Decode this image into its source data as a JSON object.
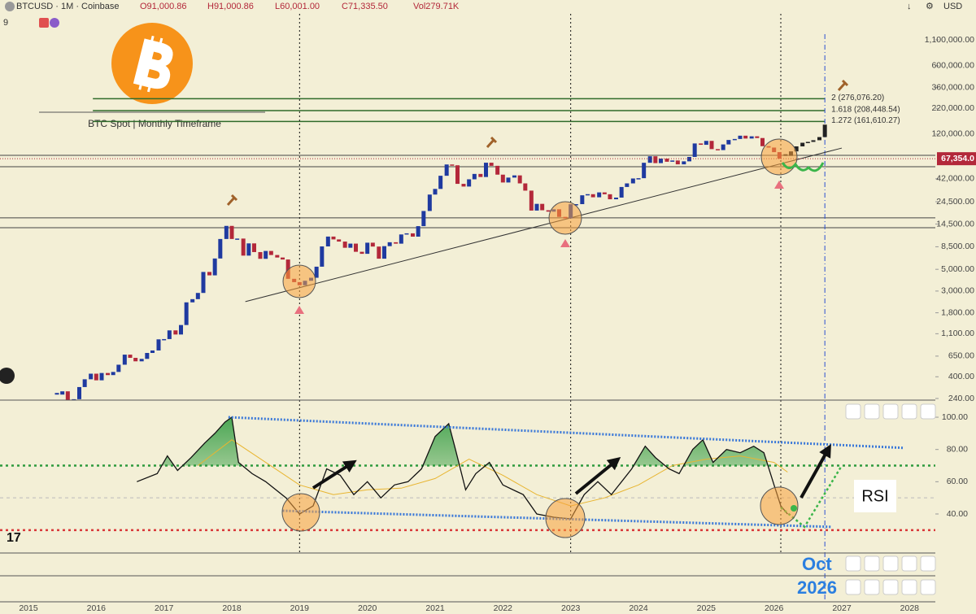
{
  "header": {
    "symbol": "BTCUSD · 1M · Coinbase",
    "ohlc": [
      "O91,000.86",
      "H91,000.86",
      "L60,001.00",
      "C71,335.50",
      "Vol279.71K"
    ],
    "badge": "9",
    "currency": "USD"
  },
  "annotations": {
    "caption": "BTC Spot | Monthly Timeframe",
    "rsi_label": "RSI",
    "target_month": "Oct",
    "target_year": "2026"
  },
  "chart_data": [
    {
      "type": "candlestick",
      "log_scale": true,
      "up_color": "#1f3aa0",
      "down_color": "#b3283a",
      "projection_color": "#222",
      "xlim": [
        2014.58,
        2028.38
      ],
      "xticks": [
        2015,
        2016,
        2017,
        2018,
        2019,
        2020,
        2021,
        2022,
        2023,
        2024,
        2025,
        2026,
        2027,
        2028
      ],
      "ylim": [
        231,
        2030000
      ],
      "yticks": [
        {
          "value": 240,
          "label": "240.00"
        },
        {
          "value": 400,
          "label": "400.00"
        },
        {
          "value": 650,
          "label": "650.00"
        },
        {
          "value": 1100,
          "label": "1,100.00"
        },
        {
          "value": 1800,
          "label": "1,800.00"
        },
        {
          "value": 3000,
          "label": "3,000.00"
        },
        {
          "value": 5000,
          "label": "5,000.00"
        },
        {
          "value": 8500,
          "label": "8,500.00"
        },
        {
          "value": 14500,
          "label": "14,500.00"
        },
        {
          "value": 24500,
          "label": "24,500.00"
        },
        {
          "value": 42000,
          "label": "42,000.00"
        },
        {
          "value": 120000,
          "label": "120,000.00"
        },
        {
          "value": 220000,
          "label": "220,000.00"
        },
        {
          "value": 360000,
          "label": "360,000.00"
        },
        {
          "value": 600000,
          "label": "600,000.00"
        },
        {
          "value": 1100000,
          "label": "1,100,000.00"
        }
      ],
      "last_price": {
        "value": 67354,
        "label": "67,354.0"
      },
      "x": [
        2015.42,
        2015.5,
        2015.58,
        2015.67,
        2015.75,
        2015.83,
        2015.92,
        2016,
        2016.08,
        2016.17,
        2016.25,
        2016.33,
        2016.42,
        2016.5,
        2016.58,
        2016.67,
        2016.75,
        2016.83,
        2016.92,
        2017,
        2017.08,
        2017.17,
        2017.25,
        2017.33,
        2017.42,
        2017.5,
        2017.58,
        2017.67,
        2017.75,
        2017.83,
        2017.92,
        2018,
        2018.08,
        2018.17,
        2018.25,
        2018.33,
        2018.42,
        2018.5,
        2018.58,
        2018.67,
        2018.75,
        2018.83,
        2018.92,
        2019,
        2019.08,
        2019.17,
        2019.25,
        2019.33,
        2019.42,
        2019.5,
        2019.58,
        2019.67,
        2019.75,
        2019.83,
        2019.92,
        2020,
        2020.08,
        2020.17,
        2020.25,
        2020.33,
        2020.42,
        2020.5,
        2020.58,
        2020.67,
        2020.75,
        2020.83,
        2020.92,
        2021,
        2021.08,
        2021.17,
        2021.25,
        2021.33,
        2021.42,
        2021.5,
        2021.58,
        2021.67,
        2021.75,
        2021.83,
        2021.92,
        2022,
        2022.08,
        2022.17,
        2022.25,
        2022.33,
        2022.42,
        2022.5,
        2022.58,
        2022.67,
        2022.75,
        2022.83,
        2022.92,
        2023,
        2023.08,
        2023.17,
        2023.25,
        2023.33,
        2023.42,
        2023.5,
        2023.58,
        2023.67,
        2023.75,
        2023.83,
        2023.92,
        2024,
        2024.08,
        2024.17,
        2024.25,
        2024.33,
        2024.42,
        2024.5,
        2024.58,
        2024.67,
        2024.75,
        2024.83,
        2024.92,
        2025,
        2025.08,
        2025.17,
        2025.25,
        2025.33,
        2025.42,
        2025.5,
        2025.58,
        2025.67,
        2025.75,
        2025.83,
        2025.92,
        2026,
        2026.08
      ],
      "values": [
        263,
        284,
        230,
        236,
        314,
        377,
        430,
        368,
        437,
        416,
        448,
        531,
        673,
        624,
        575,
        609,
        700,
        742,
        964,
        970,
        1190,
        1080,
        1350,
        2300,
        2480,
        2870,
        4700,
        4340,
        6450,
        10200,
        13880,
        10200,
        10300,
        6900,
        9200,
        7500,
        6400,
        7700,
        7000,
        6600,
        6300,
        4000,
        3700,
        3440,
        3820,
        4100,
        5320,
        8570,
        10800,
        10100,
        9600,
        8300,
        9150,
        7550,
        7200,
        9350,
        8540,
        6420,
        8620,
        9450,
        9140,
        11350,
        11650,
        10780,
        13800,
        19700,
        28990,
        33100,
        45100,
        58800,
        57700,
        37300,
        35000,
        41500,
        47100,
        43800,
        61300,
        57000,
        46300,
        38500,
        43200,
        45500,
        37700,
        31800,
        19900,
        23300,
        20050,
        19400,
        20500,
        17150,
        16550,
        23100,
        23150,
        28500,
        29250,
        27200,
        30500,
        29200,
        25950,
        27000,
        34650,
        37700,
        42300,
        42600,
        61200,
        71300,
        60700,
        67500,
        62700,
        64600,
        59000,
        63300,
        70200,
        96400,
        93400,
        102400,
        84400,
        82500,
        94200,
        104600,
        107100,
        115700,
        108200,
        114000,
        109500,
        90400,
        87500,
        78600,
        67354
      ],
      "projection_x": [
        2026.17,
        2026.25,
        2026.33,
        2026.42,
        2026.5,
        2026.58,
        2026.67,
        2026.75
      ],
      "projection_values": [
        72000,
        80000,
        90000,
        98000,
        100000,
        104000,
        112000,
        150000
      ],
      "levels": [
        {
          "value": 276076.2,
          "label": "2 (276,076.20)",
          "color": "#2f6b2a"
        },
        {
          "value": 208448.54,
          "label": "1.618 (208,448.54)",
          "color": "#2f6b2a"
        },
        {
          "value": 161610.27,
          "label": "1.272 (161,610.27)",
          "color": "#2f6b2a"
        }
      ],
      "zones": [
        72900,
        55800,
        16750,
        13300
      ],
      "trendline": {
        "x": [
          2018.2,
          2027.0
        ],
        "values": [
          2340,
          86500
        ]
      },
      "vlines": [
        2019.0,
        2023.0,
        2026.1
      ],
      "target_x": 2026.75
    },
    {
      "type": "line",
      "xlim": [
        2014.58,
        2028.38
      ],
      "ylim": [
        15.8,
        110.1
      ],
      "yticks": [
        {
          "value": 100,
          "label": "100.00"
        },
        {
          "value": 80,
          "label": "80.00"
        },
        {
          "value": 60,
          "label": "60.00"
        },
        {
          "value": 40,
          "label": "40.00"
        }
      ],
      "overbought": 70,
      "oversold": 30,
      "midline": 50,
      "color": "#111",
      "ma_color": "#e8b531",
      "fill_color": "#2e9a3e",
      "x": [
        2016.6,
        2016.9,
        2017.05,
        2017.2,
        2017.4,
        2017.6,
        2017.75,
        2017.9,
        2018.0,
        2018.1,
        2018.3,
        2018.5,
        2018.8,
        2019.0,
        2019.2,
        2019.4,
        2019.6,
        2019.8,
        2020.0,
        2020.2,
        2020.4,
        2020.6,
        2020.8,
        2021.0,
        2021.2,
        2021.3,
        2021.45,
        2021.6,
        2021.8,
        2022.0,
        2022.3,
        2022.5,
        2022.75,
        2023.0,
        2023.2,
        2023.4,
        2023.6,
        2023.9,
        2024.1,
        2024.25,
        2024.45,
        2024.6,
        2024.8,
        2024.95,
        2025.1,
        2025.3,
        2025.5,
        2025.7,
        2025.85,
        2026.0,
        2026.1,
        2026.2
      ],
      "values": [
        60,
        65,
        76,
        67,
        75,
        84,
        90,
        97,
        100,
        72,
        65,
        60,
        50,
        40,
        45,
        68,
        64,
        52,
        60,
        50,
        58,
        60,
        68,
        88,
        96,
        80,
        55,
        65,
        72,
        58,
        52,
        40,
        38,
        37,
        52,
        60,
        52,
        68,
        82,
        75,
        68,
        65,
        80,
        86,
        72,
        80,
        78,
        82,
        78,
        58,
        45,
        40
      ],
      "ma_x": [
        2017.5,
        2018.0,
        2018.5,
        2019.0,
        2019.5,
        2020.0,
        2020.5,
        2021.0,
        2021.5,
        2022.0,
        2022.5,
        2023.0,
        2023.5,
        2024.0,
        2024.5,
        2025.0,
        2025.5,
        2026.0,
        2026.2
      ],
      "ma_values": [
        70,
        86,
        72,
        58,
        52,
        55,
        56,
        62,
        74,
        64,
        52,
        45,
        50,
        58,
        70,
        74,
        76,
        72,
        66
      ],
      "channel": [
        {
          "x": [
            2017.95,
            2027.9
          ],
          "values": [
            100,
            81
          ]
        },
        {
          "x": [
            2018.75,
            2026.85
          ],
          "values": [
            42,
            32
          ]
        }
      ],
      "projection": {
        "x": [
          2026.1,
          2026.45,
          2027.0
        ],
        "values": [
          44,
          32,
          70
        ]
      }
    }
  ]
}
